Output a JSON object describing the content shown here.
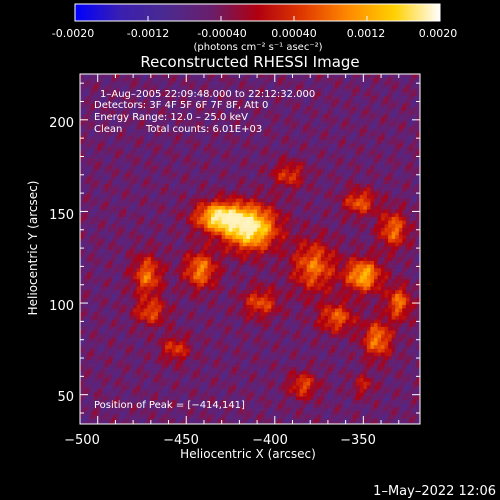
{
  "colorbar": {
    "ticks": [
      "-0.0020",
      "-0.0012",
      "-0.00040",
      "0.00040",
      "0.0012",
      "0.0020"
    ],
    "unit_label": "(photons cm⁻² s⁻¹ asec⁻²)",
    "colors": [
      "#0000ff",
      "#3a1fb0",
      "#4b2a8f",
      "#6a1e6a",
      "#b00010",
      "#e03a00",
      "#ff8a00",
      "#ffd000",
      "#ffffff"
    ]
  },
  "chart_data": {
    "type": "heatmap",
    "title": "Reconstructed RHESSI Image",
    "xlabel": "Heliocentric X (arcsec)",
    "ylabel": "Heliocentric Y (arcsec)",
    "xlim": [
      -510,
      -318
    ],
    "ylim": [
      34,
      225
    ],
    "x_ticks": [
      -500,
      -450,
      -400,
      -350
    ],
    "x_tick_labels": [
      "−500",
      "−450",
      "−400",
      "−350"
    ],
    "y_ticks": [
      50,
      100,
      150,
      200
    ],
    "y_tick_labels": [
      "50",
      "100",
      "150",
      "200"
    ],
    "color_range": [
      -0.002,
      0.002
    ],
    "peak": [
      -414,
      141
    ],
    "annotations": {
      "time_range": "1–Aug–2005 22:09:48.000 to 22:12:32.000",
      "detectors": "Detectors: 3F 4F 5F 6F 7F 8F, Att 0",
      "energy": "Energy Range: 12.0 – 25.0 keV",
      "method": "Clean",
      "total_counts": "Total counts: 6.01E+03",
      "peak_label": "Position of Peak = [−414,141]"
    }
  },
  "footer": {
    "date": "1–May–2022 12:06"
  }
}
